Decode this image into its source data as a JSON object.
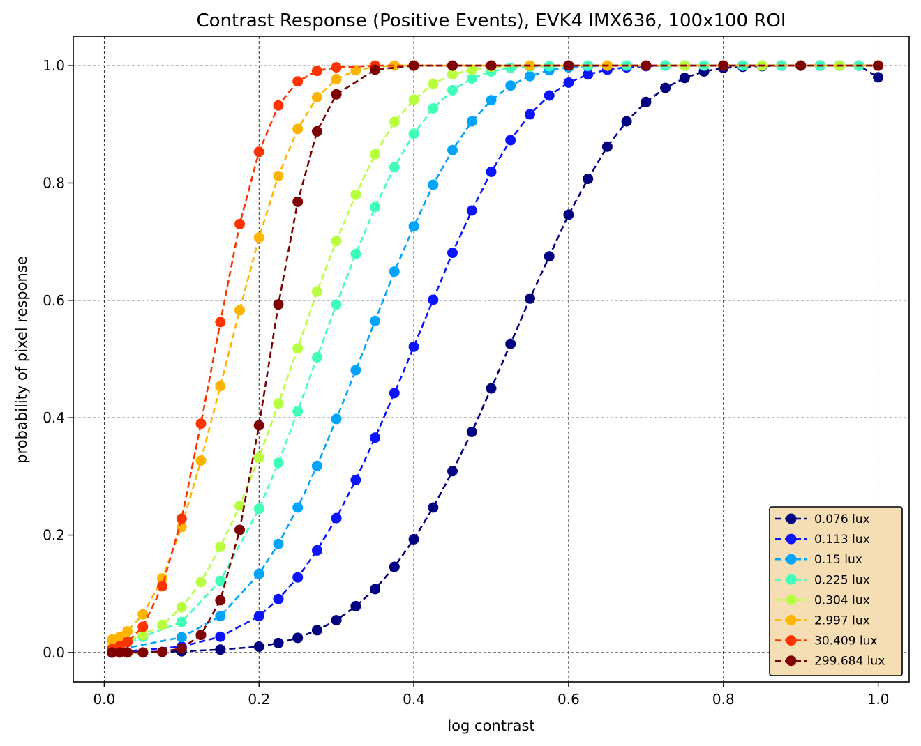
{
  "chart_data": {
    "type": "line",
    "title": "Contrast Response (Positive Events), EVK4 IMX636, 100x100 ROI",
    "xlabel": "log contrast",
    "ylabel": "probability of pixel response",
    "xlim": [
      -0.04,
      1.04
    ],
    "ylim": [
      -0.05,
      1.05
    ],
    "xticks": [
      "0.0",
      "0.2",
      "0.4",
      "0.6",
      "0.8",
      "1.0"
    ],
    "yticks": [
      "0.0",
      "0.2",
      "0.4",
      "0.6",
      "0.8",
      "1.0"
    ],
    "grid": true,
    "legend_position": "lower-right",
    "legend_background": "#f5deb3",
    "series": [
      {
        "name": "0.076 lux",
        "color": "#000080",
        "x": [
          0.01,
          0.1,
          0.15,
          0.2,
          0.225,
          0.25,
          0.275,
          0.3,
          0.325,
          0.35,
          0.375,
          0.4,
          0.425,
          0.45,
          0.475,
          0.5,
          0.525,
          0.55,
          0.575,
          0.6,
          0.625,
          0.65,
          0.675,
          0.7,
          0.725,
          0.75,
          0.775,
          0.8,
          0.825,
          0.85,
          0.875,
          0.9,
          0.925,
          0.95,
          0.975,
          1.0
        ],
        "y": [
          0.0,
          0.002,
          0.005,
          0.01,
          0.016,
          0.025,
          0.038,
          0.055,
          0.079,
          0.108,
          0.146,
          0.193,
          0.247,
          0.309,
          0.376,
          0.45,
          0.526,
          0.603,
          0.675,
          0.746,
          0.807,
          0.862,
          0.905,
          0.938,
          0.962,
          0.979,
          0.99,
          0.996,
          0.998,
          0.999,
          1.0,
          1.0,
          1.0,
          1.0,
          1.0,
          0.98
        ]
      },
      {
        "name": "0.113 lux",
        "color": "#0a14ff",
        "x": [
          0.01,
          0.1,
          0.15,
          0.2,
          0.225,
          0.25,
          0.275,
          0.3,
          0.325,
          0.35,
          0.375,
          0.4,
          0.425,
          0.45,
          0.475,
          0.5,
          0.525,
          0.55,
          0.575,
          0.6,
          0.625,
          0.65,
          0.675,
          0.7,
          0.725,
          0.75,
          0.775,
          0.8,
          0.825,
          0.85,
          0.875,
          0.9,
          0.925,
          0.95,
          0.975,
          1.0
        ],
        "y": [
          0.0,
          0.01,
          0.027,
          0.062,
          0.091,
          0.128,
          0.174,
          0.229,
          0.294,
          0.366,
          0.442,
          0.521,
          0.601,
          0.681,
          0.753,
          0.819,
          0.873,
          0.917,
          0.949,
          0.971,
          0.985,
          0.993,
          0.997,
          0.999,
          1.0,
          1.0,
          1.0,
          1.0,
          1.0,
          1.0,
          1.0,
          1.0,
          1.0,
          1.0,
          1.0,
          1.0
        ]
      },
      {
        "name": "0.15 lux",
        "color": "#00a4ff",
        "x": [
          0.01,
          0.1,
          0.15,
          0.2,
          0.225,
          0.25,
          0.275,
          0.3,
          0.325,
          0.35,
          0.375,
          0.4,
          0.425,
          0.45,
          0.475,
          0.5,
          0.525,
          0.55,
          0.575,
          0.6,
          0.625,
          0.65,
          0.675,
          0.7,
          0.725,
          0.75,
          0.775,
          0.8,
          0.825,
          0.85,
          0.875,
          0.9,
          0.925,
          0.95,
          0.975,
          1.0
        ],
        "y": [
          0.003,
          0.026,
          0.062,
          0.134,
          0.185,
          0.247,
          0.318,
          0.398,
          0.481,
          0.565,
          0.649,
          0.726,
          0.797,
          0.856,
          0.905,
          0.941,
          0.966,
          0.982,
          0.992,
          0.997,
          0.999,
          1.0,
          1.0,
          1.0,
          1.0,
          1.0,
          1.0,
          1.0,
          1.0,
          1.0,
          1.0,
          1.0,
          1.0,
          1.0,
          1.0,
          1.0
        ]
      },
      {
        "name": "0.225 lux",
        "color": "#40ffb8",
        "x": [
          0.01,
          0.05,
          0.1,
          0.15,
          0.2,
          0.225,
          0.25,
          0.275,
          0.3,
          0.325,
          0.35,
          0.375,
          0.4,
          0.425,
          0.45,
          0.475,
          0.5,
          0.525,
          0.55,
          0.575,
          0.6,
          0.625,
          0.65,
          0.675,
          0.7,
          0.725,
          0.75,
          0.775,
          0.8,
          0.825,
          0.85,
          0.875,
          0.9,
          0.925,
          0.95,
          0.975,
          1.0
        ],
        "y": [
          0.005,
          0.027,
          0.052,
          0.122,
          0.245,
          0.323,
          0.411,
          0.503,
          0.593,
          0.679,
          0.759,
          0.827,
          0.884,
          0.927,
          0.958,
          0.978,
          0.99,
          0.996,
          0.998,
          0.999,
          1.0,
          1.0,
          1.0,
          1.0,
          1.0,
          1.0,
          1.0,
          1.0,
          1.0,
          1.0,
          1.0,
          1.0,
          1.0,
          1.0,
          1.0,
          1.0,
          1.0
        ]
      },
      {
        "name": "0.304 lux",
        "color": "#b8ff40",
        "x": [
          0.01,
          0.05,
          0.075,
          0.1,
          0.125,
          0.15,
          0.175,
          0.2,
          0.225,
          0.25,
          0.275,
          0.3,
          0.325,
          0.35,
          0.375,
          0.4,
          0.425,
          0.45,
          0.475,
          0.5,
          0.55,
          0.6,
          0.65,
          0.7,
          0.75,
          0.8,
          0.85,
          0.9,
          0.95,
          1.0
        ],
        "y": [
          0.01,
          0.03,
          0.047,
          0.077,
          0.12,
          0.18,
          0.25,
          0.332,
          0.424,
          0.518,
          0.615,
          0.701,
          0.78,
          0.849,
          0.904,
          0.942,
          0.969,
          0.985,
          0.993,
          0.998,
          1.0,
          1.0,
          1.0,
          1.0,
          1.0,
          1.0,
          1.0,
          1.0,
          1.0,
          1.0
        ]
      },
      {
        "name": "2.997 lux",
        "color": "#ffb400",
        "x": [
          0.01,
          0.02,
          0.03,
          0.05,
          0.075,
          0.1,
          0.125,
          0.15,
          0.175,
          0.2,
          0.225,
          0.25,
          0.275,
          0.3,
          0.325,
          0.35,
          0.375,
          0.4,
          0.45,
          0.5,
          0.55,
          0.6,
          0.65,
          0.7,
          0.8,
          0.9,
          1.0
        ],
        "y": [
          0.022,
          0.027,
          0.036,
          0.065,
          0.126,
          0.214,
          0.327,
          0.454,
          0.583,
          0.707,
          0.812,
          0.892,
          0.946,
          0.977,
          0.992,
          0.998,
          1.0,
          1.0,
          1.0,
          1.0,
          1.0,
          1.0,
          1.0,
          1.0,
          1.0,
          1.0,
          1.0
        ]
      },
      {
        "name": "30.409 lux",
        "color": "#ff3300",
        "x": [
          0.01,
          0.02,
          0.03,
          0.05,
          0.075,
          0.1,
          0.125,
          0.15,
          0.175,
          0.2,
          0.225,
          0.25,
          0.275,
          0.3,
          0.35,
          0.4,
          0.5,
          0.6,
          0.7,
          0.8,
          0.9,
          1.0
        ],
        "y": [
          0.006,
          0.011,
          0.018,
          0.044,
          0.113,
          0.228,
          0.39,
          0.563,
          0.73,
          0.853,
          0.932,
          0.973,
          0.991,
          0.997,
          1.0,
          1.0,
          1.0,
          1.0,
          1.0,
          1.0,
          1.0,
          1.0
        ]
      },
      {
        "name": "299.684 lux",
        "color": "#7f0000",
        "x": [
          0.01,
          0.02,
          0.03,
          0.05,
          0.075,
          0.1,
          0.125,
          0.15,
          0.175,
          0.2,
          0.225,
          0.25,
          0.275,
          0.3,
          0.35,
          0.4,
          0.45,
          0.5,
          0.6,
          0.7,
          0.8,
          0.9,
          1.0
        ],
        "y": [
          0.0,
          0.0,
          0.0,
          0.0,
          0.001,
          0.007,
          0.03,
          0.089,
          0.209,
          0.387,
          0.593,
          0.768,
          0.888,
          0.951,
          0.993,
          1.0,
          1.0,
          1.0,
          1.0,
          1.0,
          1.0,
          1.0,
          1.0
        ]
      }
    ]
  }
}
